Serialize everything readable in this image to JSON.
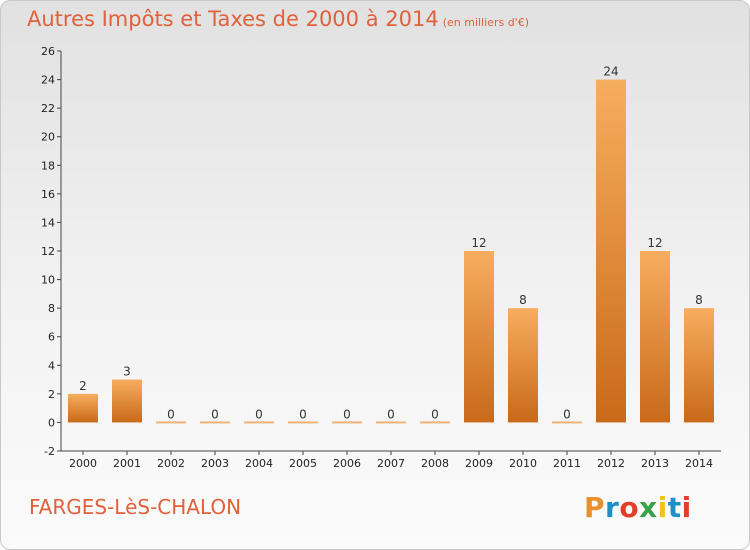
{
  "header": {
    "title": "Autres Impôts et Taxes de 2000 à 2014",
    "unit": "(en milliers d'€)"
  },
  "footer": {
    "commune": "FARGES-LèS-CHALON",
    "brand": "Proxiti",
    "brand_colors": [
      "#e8912c",
      "#1e90c8",
      "#e0402a",
      "#3aa24a",
      "#f2c21b",
      "#1e90c8",
      "#e0402a"
    ]
  },
  "colors": {
    "text_accent": "#e0613a",
    "bar_light": "#f6a95a",
    "bar_dark": "#c96a18"
  },
  "chart_data": {
    "type": "bar",
    "title": "Autres Impôts et Taxes de 2000 à 2014",
    "xlabel": "",
    "ylabel": "",
    "categories": [
      "2000",
      "2001",
      "2002",
      "2003",
      "2004",
      "2005",
      "2006",
      "2007",
      "2008",
      "2009",
      "2010",
      "2011",
      "2012",
      "2013",
      "2014"
    ],
    "values": [
      2,
      3,
      0,
      0,
      0,
      0,
      0,
      0,
      0,
      12,
      8,
      0,
      24,
      12,
      8
    ],
    "ylim": [
      -2,
      26
    ],
    "yticks": [
      -2,
      0,
      2,
      4,
      6,
      8,
      10,
      12,
      14,
      16,
      18,
      20,
      22,
      24,
      26
    ],
    "grid": false,
    "legend": "none"
  }
}
